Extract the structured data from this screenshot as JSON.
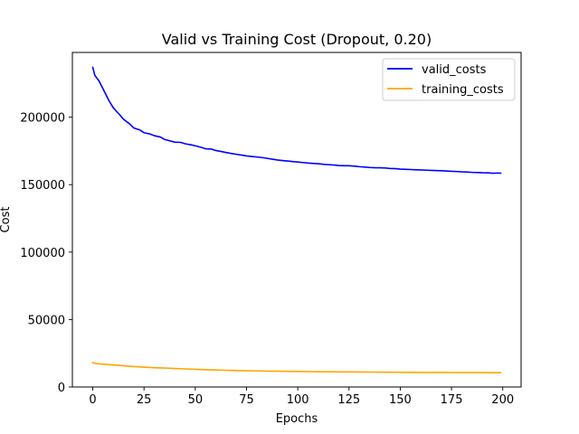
{
  "chart_data": {
    "type": "line",
    "title": "Valid vs Training Cost (Dropout, 0.20)",
    "xlabel": "Epochs",
    "ylabel": "Cost",
    "xlim": [
      -9.95,
      208.95
    ],
    "ylim": [
      0,
      248000
    ],
    "xticks": [
      0,
      25,
      50,
      75,
      100,
      125,
      150,
      175,
      200
    ],
    "yticks": [
      0,
      50000,
      100000,
      150000,
      200000
    ],
    "grid": false,
    "legend_position": "top-right",
    "series": [
      {
        "name": "valid_costs",
        "color": "#0000ff",
        "x": [
          0,
          1,
          3,
          5,
          8,
          10,
          13,
          15,
          18,
          20,
          23,
          25,
          28,
          30,
          33,
          35,
          38,
          40,
          43,
          45,
          48,
          50,
          53,
          55,
          58,
          60,
          63,
          65,
          68,
          70,
          73,
          75,
          78,
          80,
          83,
          85,
          88,
          90,
          93,
          95,
          98,
          100,
          103,
          105,
          108,
          110,
          113,
          115,
          118,
          120,
          123,
          125,
          128,
          130,
          133,
          135,
          138,
          140,
          143,
          145,
          148,
          150,
          153,
          155,
          158,
          160,
          163,
          165,
          168,
          170,
          173,
          175,
          178,
          180,
          183,
          185,
          188,
          190,
          193,
          195,
          198,
          199
        ],
        "y": [
          237000,
          231000,
          227000,
          221000,
          212000,
          207000,
          202000,
          198500,
          195000,
          192000,
          190500,
          188500,
          187500,
          186300,
          185300,
          183500,
          182300,
          181500,
          181300,
          180300,
          179500,
          178800,
          177600,
          176600,
          176300,
          175300,
          174500,
          173800,
          173000,
          172500,
          171800,
          171300,
          170800,
          170500,
          170000,
          169500,
          168800,
          168300,
          167800,
          167500,
          167000,
          166800,
          166300,
          166000,
          165700,
          165500,
          165000,
          164800,
          164500,
          164200,
          164000,
          164000,
          163700,
          163300,
          163000,
          162700,
          162500,
          162500,
          162300,
          162000,
          161800,
          161500,
          161300,
          161200,
          161000,
          160900,
          160700,
          160600,
          160400,
          160300,
          160100,
          159900,
          159700,
          159500,
          159300,
          159100,
          159000,
          158800,
          158700,
          158500,
          158600,
          158500
        ]
      },
      {
        "name": "training_costs",
        "color": "#ffa500",
        "x": [
          0,
          2,
          5,
          10,
          15,
          20,
          25,
          30,
          35,
          40,
          45,
          50,
          55,
          60,
          65,
          70,
          75,
          80,
          85,
          90,
          95,
          100,
          105,
          110,
          115,
          120,
          125,
          130,
          135,
          140,
          145,
          150,
          155,
          160,
          165,
          170,
          175,
          180,
          185,
          190,
          195,
          199
        ],
        "y": [
          18000,
          17300,
          16900,
          16300,
          15700,
          15100,
          14700,
          14300,
          14000,
          13700,
          13400,
          13100,
          12800,
          12600,
          12400,
          12200,
          12050,
          11900,
          11800,
          11700,
          11600,
          11500,
          11400,
          11300,
          11250,
          11200,
          11150,
          11100,
          11050,
          11000,
          10950,
          10900,
          10850,
          10800,
          10780,
          10750,
          10720,
          10700,
          10680,
          10650,
          10620,
          10600
        ]
      }
    ]
  }
}
